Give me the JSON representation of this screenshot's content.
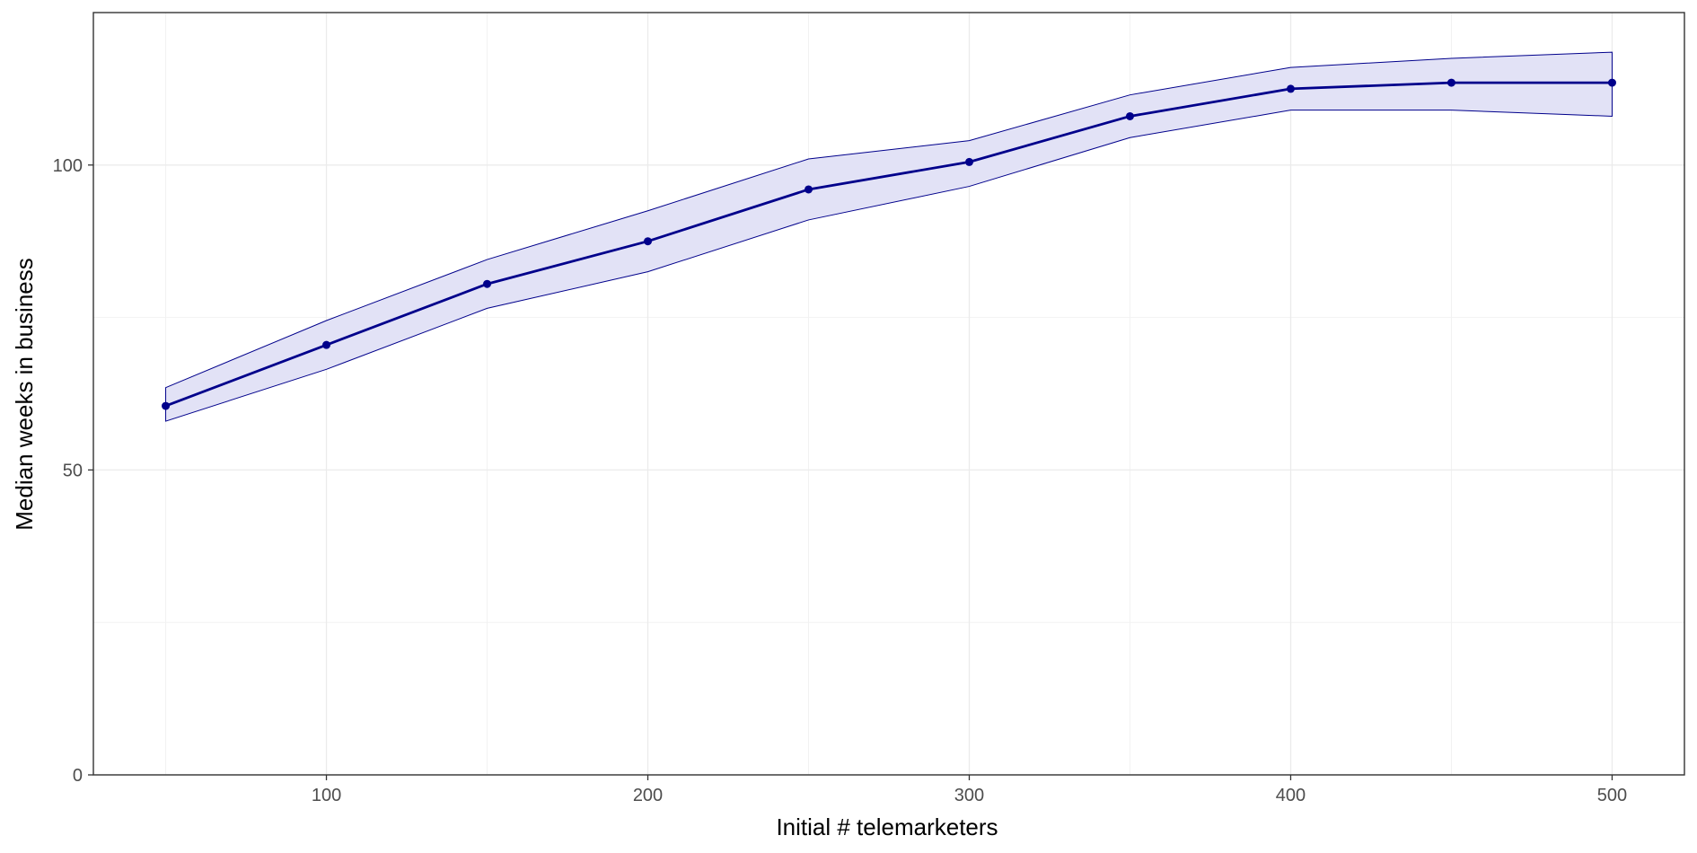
{
  "chart_data": {
    "type": "line",
    "title": "",
    "xlabel": "Initial # telemarketers",
    "ylabel": "Median weeks in business",
    "xlim": [
      27.5,
      522.5
    ],
    "ylim": [
      0,
      125
    ],
    "x_ticks": [
      {
        "value": 100,
        "label": "100"
      },
      {
        "value": 200,
        "label": "200"
      },
      {
        "value": 300,
        "label": "300"
      },
      {
        "value": 400,
        "label": "400"
      },
      {
        "value": 500,
        "label": "500"
      }
    ],
    "y_ticks": [
      {
        "value": 0,
        "label": "0"
      },
      {
        "value": 50,
        "label": "50"
      },
      {
        "value": 100,
        "label": "100"
      }
    ],
    "x_minor_grid": [
      50,
      150,
      250,
      350,
      450
    ],
    "y_minor_grid": [
      25,
      75,
      125
    ],
    "grid": true,
    "legend": "none",
    "x": [
      50,
      100,
      150,
      200,
      250,
      300,
      350,
      400,
      450,
      500
    ],
    "series": [
      {
        "values": [
          60.5,
          70.5,
          80.5,
          87.5,
          96,
          100.5,
          108,
          112.5,
          113.5,
          113.5
        ],
        "lower": [
          58,
          66.5,
          76.5,
          82.5,
          91,
          96.5,
          104.5,
          109,
          109,
          108
        ],
        "upper": [
          63.5,
          74.5,
          84.5,
          92.5,
          101,
          104,
          111.5,
          116,
          117.5,
          118.5
        ]
      }
    ],
    "colors": {
      "line": "#00008B",
      "ribbon_fill": "#E2E2F6",
      "ribbon_edge": "#00008B",
      "grid_major": "#EBEBEB",
      "grid_minor": "#F2F2F2",
      "panel_border": "#333333"
    }
  }
}
